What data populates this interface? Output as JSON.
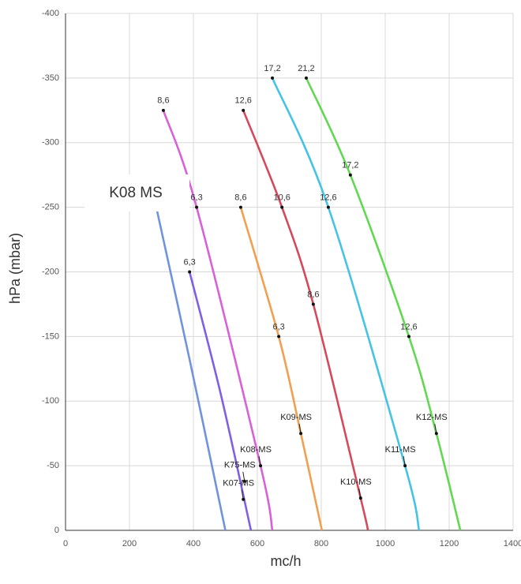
{
  "chart_data": {
    "type": "line",
    "xlabel": "mc/h",
    "ylabel": "hPa (mbar)",
    "xlim": [
      0,
      1400
    ],
    "ylim": [
      0,
      -400
    ],
    "xticks": [
      0,
      200,
      400,
      600,
      800,
      1000,
      1200,
      1400
    ],
    "yticks": [
      0,
      -50,
      -100,
      -150,
      -200,
      -250,
      -300,
      -350,
      -400
    ],
    "grid": true,
    "series": [
      {
        "name": "K07-MS",
        "color": "#6f93dc",
        "x": [
          275,
          390,
          500
        ],
        "values": [
          -260,
          -130,
          0
        ],
        "point_labels": [
          null,
          null,
          null
        ]
      },
      {
        "name": "K75-MS",
        "color": "#8060e0",
        "x": [
          388,
          486,
          580
        ],
        "values": [
          -200,
          -105,
          0
        ],
        "point_labels": [
          "6,3",
          null,
          null
        ]
      },
      {
        "name": "K08-MS",
        "color": "#d860d8",
        "x": [
          306,
          410,
          610,
          647
        ],
        "values": [
          -325,
          -250,
          -50,
          0
        ],
        "point_labels": [
          "8,6",
          "6,3",
          null,
          null
        ]
      },
      {
        "name": "K09-MS",
        "color": "#f0a050",
        "x": [
          548,
          667,
          736,
          802
        ],
        "values": [
          -250,
          -150,
          -75,
          0
        ],
        "point_labels": [
          "8,6",
          "6,3",
          null,
          null
        ]
      },
      {
        "name": "K10-MS",
        "color": "#d44a5c",
        "x": [
          556,
          677,
          775,
          923,
          946
        ],
        "values": [
          -325,
          -250,
          -175,
          -25,
          0
        ],
        "point_labels": [
          "12,6",
          "10,6",
          "8,6",
          null,
          null
        ]
      },
      {
        "name": "K11-MS",
        "color": "#45c3e6",
        "x": [
          647,
          822,
          1062,
          1106
        ],
        "values": [
          -350,
          -250,
          -50,
          0
        ],
        "point_labels": [
          "17,2",
          "12,6",
          null,
          null
        ]
      },
      {
        "name": "K12-MS",
        "color": "#62d852",
        "x": [
          753,
          891,
          1074,
          1160,
          1235
        ],
        "values": [
          -350,
          -275,
          -150,
          -75,
          0
        ],
        "point_labels": [
          "21,2",
          "17,2",
          "12,6",
          null,
          null
        ]
      }
    ],
    "annotations": [
      {
        "text": "K07-MS",
        "x": 556,
        "y": -24
      },
      {
        "text": "K75-MS",
        "x": 560,
        "y": -38
      },
      {
        "text": "K08-MS",
        "x": 610,
        "y": -50
      },
      {
        "text": "K09-MS",
        "x": 736,
        "y": -75
      },
      {
        "text": "K10-MS",
        "x": 923,
        "y": -25
      },
      {
        "text": "K11-MS",
        "x": 1062,
        "y": -50
      },
      {
        "text": "K12-MS",
        "x": 1160,
        "y": -75
      }
    ],
    "box_label": "K08 MS"
  }
}
